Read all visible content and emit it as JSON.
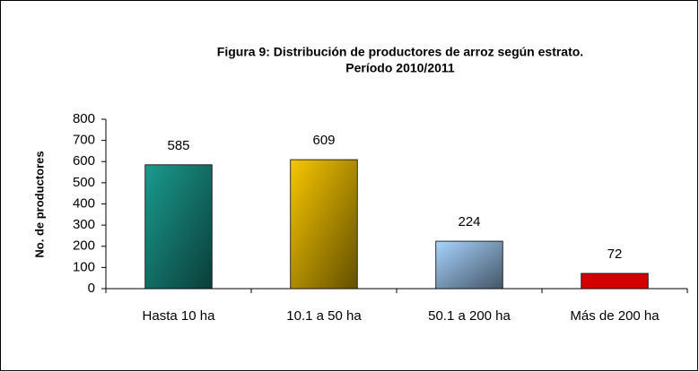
{
  "chart_data": {
    "type": "bar",
    "title": [
      "Figura  9: Distribución de productores de arroz  según  estrato.",
      "Período 2010/2011"
    ],
    "ylabel": "No. de productores",
    "categories": [
      "Hasta 10 ha",
      "10.1 a 50 ha",
      "50.1 a 200 ha",
      "Más de 200 ha"
    ],
    "values": [
      585,
      609,
      224,
      72
    ],
    "colors": [
      "#1a9a8e",
      "#f7c600",
      "#a8d4ff",
      "#d40000"
    ],
    "ylim": [
      0,
      800
    ],
    "yticks": [
      0,
      100,
      200,
      300,
      400,
      500,
      600,
      700,
      800
    ],
    "grid": false
  }
}
